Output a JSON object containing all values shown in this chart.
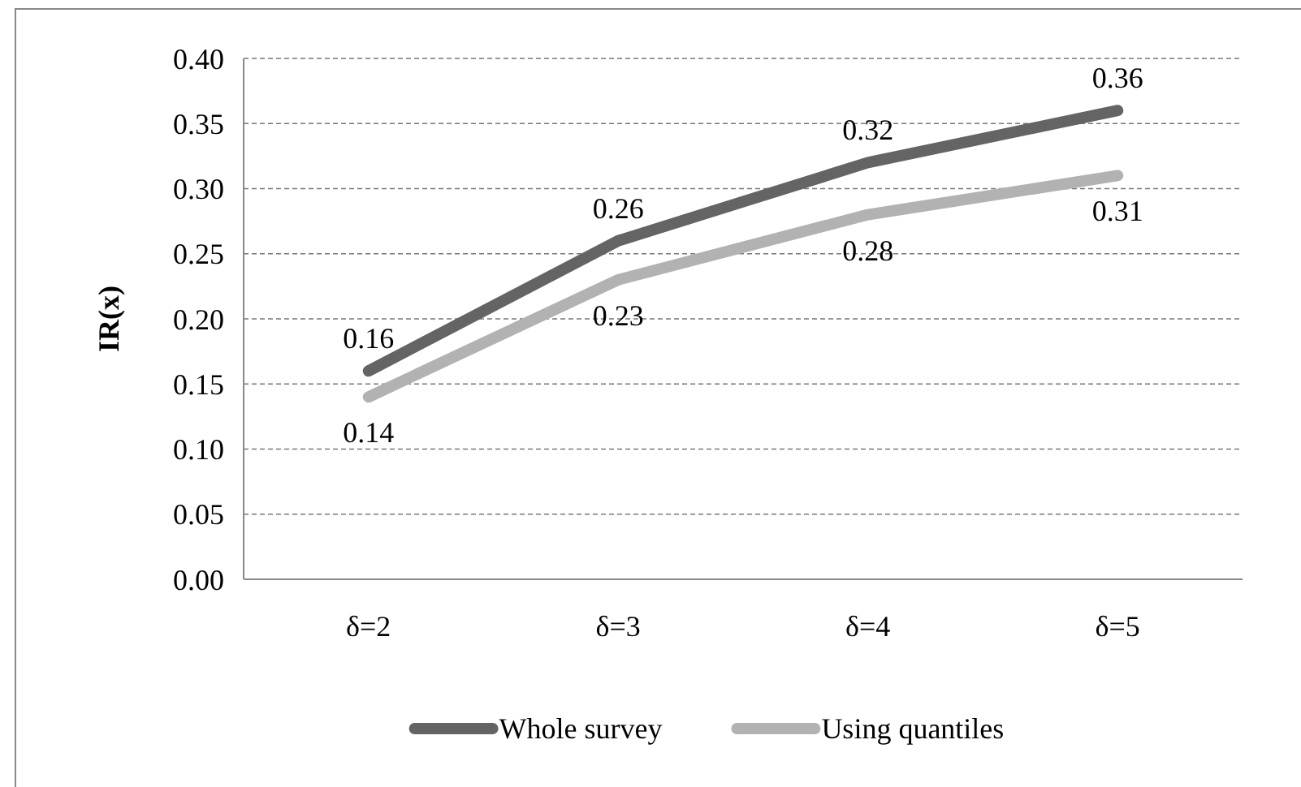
{
  "chart_data": {
    "type": "line",
    "ylabel": "IR(x)",
    "categories": [
      "δ=2",
      "δ=3",
      "δ=4",
      "δ=5"
    ],
    "series": [
      {
        "name": "Whole survey",
        "color": "#646464",
        "values": [
          0.16,
          0.26,
          0.32,
          0.36
        ]
      },
      {
        "name": "Using quantiles",
        "color": "#b2b2b2",
        "values": [
          0.14,
          0.23,
          0.28,
          0.31
        ]
      }
    ],
    "ylim": [
      0,
      0.4
    ],
    "yticks": [
      {
        "value": 0,
        "label": "0.00"
      },
      {
        "value": 0.05,
        "label": "0.05"
      },
      {
        "value": 0.1,
        "label": "0.10"
      },
      {
        "value": 0.15,
        "label": "0.15"
      },
      {
        "value": 0.2,
        "label": "0.20"
      },
      {
        "value": 0.25,
        "label": "0.25"
      },
      {
        "value": 0.3,
        "label": "0.30"
      },
      {
        "value": 0.35,
        "label": "0.35"
      },
      {
        "value": 0.4,
        "label": "0.40"
      }
    ],
    "grid": "y",
    "legend": "bottom",
    "data_labels": true,
    "marker": "none",
    "line_style": "solid"
  }
}
